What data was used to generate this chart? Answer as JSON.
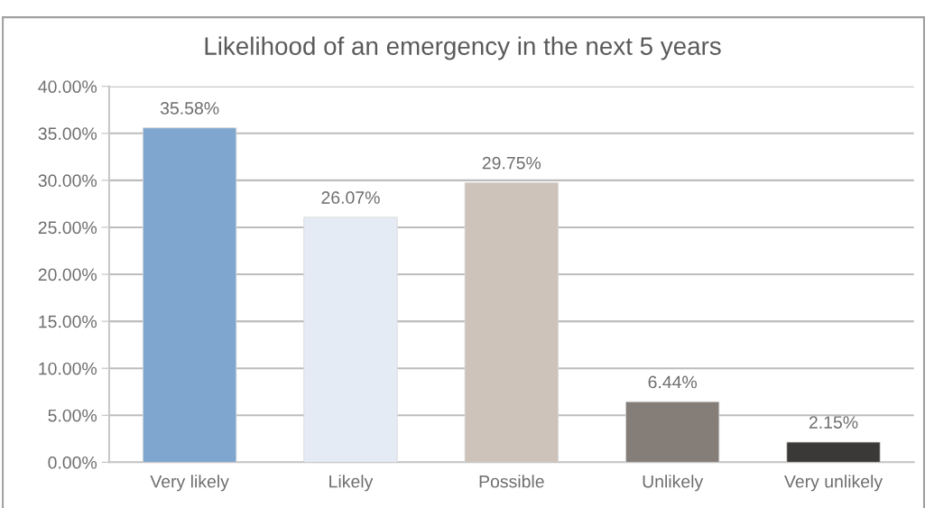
{
  "chart_data": {
    "type": "bar",
    "title": "Likelihood of an emergency in the next 5 years",
    "categories": [
      "Very likely",
      "Likely",
      "Possible",
      "Unlikely",
      "Very unlikely"
    ],
    "values": [
      35.58,
      26.07,
      29.75,
      6.44,
      2.15
    ],
    "colors": [
      "#7fa6cf",
      "#e4ebf4",
      "#cdc3ba",
      "#847d78",
      "#3b3937"
    ],
    "value_labels": [
      "35.58%",
      "26.07%",
      "29.75%",
      "6.44%",
      "2.15%"
    ],
    "ylim": [
      0,
      40
    ],
    "yticks": [
      {
        "value": 0,
        "label": "0.00%"
      },
      {
        "value": 5,
        "label": "5.00%"
      },
      {
        "value": 10,
        "label": "10.00%"
      },
      {
        "value": 15,
        "label": "15.00%"
      },
      {
        "value": 20,
        "label": "20.00%"
      },
      {
        "value": 25,
        "label": "25.00%"
      },
      {
        "value": 30,
        "label": "30.00%"
      },
      {
        "value": 35,
        "label": "35.00%"
      },
      {
        "value": 40,
        "label": "40.00%"
      }
    ],
    "grid": "y",
    "legend": false
  }
}
